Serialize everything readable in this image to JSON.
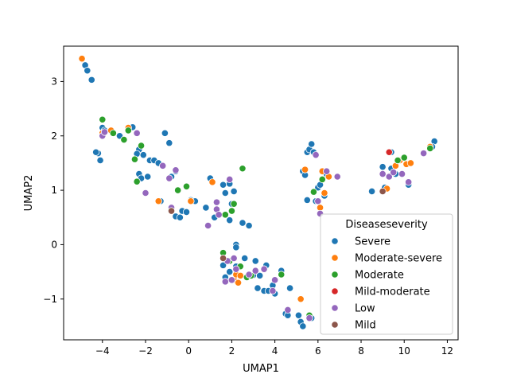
{
  "chart_data": {
    "type": "scatter",
    "xlabel": "UMAP1",
    "ylabel": "UMAP2",
    "xlim": [
      -5.8,
      12.5
    ],
    "ylim": [
      -1.75,
      3.65
    ],
    "xticks": [
      -4,
      -2,
      0,
      2,
      4,
      6,
      8,
      10,
      12
    ],
    "yticks": [
      -1,
      0,
      1,
      2,
      3
    ],
    "grid": false,
    "legend": {
      "title": "Diseaseseverity",
      "placement": "lower-right"
    },
    "series": [
      {
        "name": "Severe",
        "color": "#1f77b4",
        "points": [
          [
            -4.8,
            3.3
          ],
          [
            -4.7,
            3.2
          ],
          [
            -4.5,
            3.03
          ],
          [
            -4.95,
            3.41
          ],
          [
            -4.2,
            1.68
          ],
          [
            -4.1,
            1.55
          ],
          [
            -4.3,
            1.7
          ],
          [
            -4.0,
            2.15
          ],
          [
            -3.9,
            2.1
          ],
          [
            -3.5,
            2.05
          ],
          [
            -3.0,
            1.93
          ],
          [
            -3.2,
            2.0
          ],
          [
            -2.6,
            2.16
          ],
          [
            -2.3,
            1.75
          ],
          [
            -2.4,
            1.67
          ],
          [
            -2.1,
            1.65
          ],
          [
            -1.8,
            1.55
          ],
          [
            -1.6,
            1.55
          ],
          [
            -1.4,
            1.5
          ],
          [
            -1.1,
            2.05
          ],
          [
            -0.9,
            1.87
          ],
          [
            -0.6,
            1.35
          ],
          [
            -2.3,
            1.3
          ],
          [
            -2.2,
            1.22
          ],
          [
            -1.9,
            1.25
          ],
          [
            -1.3,
            0.8
          ],
          [
            -0.8,
            1.25
          ],
          [
            -0.8,
            0.65
          ],
          [
            -0.6,
            0.52
          ],
          [
            -0.4,
            0.5
          ],
          [
            -0.3,
            0.62
          ],
          [
            -0.1,
            0.6
          ],
          [
            0.1,
            0.82
          ],
          [
            0.3,
            0.8
          ],
          [
            0.8,
            0.68
          ],
          [
            1.0,
            1.22
          ],
          [
            1.2,
            0.5
          ],
          [
            0.9,
            0.35
          ],
          [
            1.6,
            1.1
          ],
          [
            1.7,
            0.95
          ],
          [
            1.9,
            1.12
          ],
          [
            2.1,
            0.98
          ],
          [
            1.9,
            0.45
          ],
          [
            2.0,
            0.75
          ],
          [
            2.5,
            0.4
          ],
          [
            2.8,
            0.35
          ],
          [
            2.2,
            0.0
          ],
          [
            2.2,
            -0.05
          ],
          [
            1.6,
            -0.38
          ],
          [
            1.9,
            -0.5
          ],
          [
            1.7,
            -0.6
          ],
          [
            2.2,
            -0.4
          ],
          [
            2.6,
            -0.25
          ],
          [
            3.1,
            -0.3
          ],
          [
            3.0,
            -0.56
          ],
          [
            3.3,
            -0.57
          ],
          [
            3.2,
            -0.8
          ],
          [
            3.5,
            -0.85
          ],
          [
            3.7,
            -0.85
          ],
          [
            3.9,
            -0.75
          ],
          [
            4.0,
            -0.9
          ],
          [
            3.6,
            -0.38
          ],
          [
            3.5,
            -0.45
          ],
          [
            4.3,
            -0.48
          ],
          [
            4.5,
            -1.27
          ],
          [
            4.6,
            -1.3
          ],
          [
            4.7,
            -0.8
          ],
          [
            5.1,
            -1.3
          ],
          [
            5.2,
            -1.42
          ],
          [
            5.3,
            -1.5
          ],
          [
            5.7,
            -1.35
          ],
          [
            5.3,
            1.35
          ],
          [
            5.4,
            1.28
          ],
          [
            5.5,
            1.7
          ],
          [
            5.6,
            1.75
          ],
          [
            5.7,
            1.85
          ],
          [
            5.8,
            1.7
          ],
          [
            5.5,
            0.82
          ],
          [
            5.9,
            0.8
          ],
          [
            6.0,
            1.05
          ],
          [
            6.1,
            1.1
          ],
          [
            6.2,
            1.34
          ],
          [
            6.3,
            0.9
          ],
          [
            6.4,
            1.3
          ],
          [
            8.5,
            0.98
          ],
          [
            9.0,
            1.43
          ],
          [
            9.1,
            1.05
          ],
          [
            9.4,
            1.4
          ],
          [
            9.6,
            1.3
          ],
          [
            9.4,
            1.7
          ],
          [
            10.2,
            1.1
          ],
          [
            11.4,
            1.9
          ],
          [
            11.3,
            1.8
          ]
        ]
      },
      {
        "name": "Moderate-severe",
        "color": "#ff7f0e",
        "points": [
          [
            -4.95,
            3.42
          ],
          [
            -4.0,
            2.05
          ],
          [
            -3.6,
            2.1
          ],
          [
            -2.8,
            2.15
          ],
          [
            -1.4,
            0.8
          ],
          [
            0.1,
            0.8
          ],
          [
            1.1,
            1.15
          ],
          [
            2.1,
            -0.65
          ],
          [
            2.3,
            -0.7
          ],
          [
            2.2,
            -0.55
          ],
          [
            2.4,
            -0.57
          ],
          [
            5.2,
            -1.0
          ],
          [
            5.4,
            1.38
          ],
          [
            6.1,
            0.68
          ],
          [
            6.3,
            0.95
          ],
          [
            6.5,
            1.25
          ],
          [
            6.2,
            1.35
          ],
          [
            9.2,
            1.03
          ],
          [
            9.6,
            1.45
          ],
          [
            9.8,
            1.55
          ],
          [
            10.1,
            1.48
          ],
          [
            10.3,
            1.5
          ],
          [
            11.2,
            1.8
          ]
        ]
      },
      {
        "name": "Moderate",
        "color": "#2ca02c",
        "points": [
          [
            -4.0,
            2.3
          ],
          [
            -3.5,
            2.05
          ],
          [
            -3.0,
            1.93
          ],
          [
            -2.8,
            2.1
          ],
          [
            -2.5,
            1.57
          ],
          [
            -2.4,
            1.16
          ],
          [
            -2.2,
            1.82
          ],
          [
            -0.5,
            1.0
          ],
          [
            -0.1,
            1.07
          ],
          [
            1.6,
            -0.15
          ],
          [
            1.7,
            0.55
          ],
          [
            1.9,
            -0.3
          ],
          [
            2.0,
            0.62
          ],
          [
            2.1,
            0.75
          ],
          [
            2.4,
            -0.4
          ],
          [
            2.5,
            1.4
          ],
          [
            2.7,
            -0.6
          ],
          [
            2.9,
            -0.57
          ],
          [
            4.3,
            -0.55
          ],
          [
            5.6,
            -1.3
          ],
          [
            5.8,
            0.97
          ],
          [
            6.2,
            1.2
          ],
          [
            9.7,
            1.55
          ],
          [
            10.0,
            1.6
          ],
          [
            11.2,
            1.77
          ]
        ]
      },
      {
        "name": "Mild-moderate",
        "color": "#d62728",
        "points": [
          [
            9.3,
            1.7
          ]
        ]
      },
      {
        "name": "Low",
        "color": "#9467bd",
        "points": [
          [
            -4.0,
            2.0
          ],
          [
            -3.9,
            2.07
          ],
          [
            -2.4,
            2.05
          ],
          [
            -2.0,
            0.95
          ],
          [
            -1.2,
            1.45
          ],
          [
            -0.9,
            1.22
          ],
          [
            -0.6,
            1.37
          ],
          [
            -0.8,
            0.68
          ],
          [
            0.9,
            0.35
          ],
          [
            1.3,
            0.78
          ],
          [
            1.3,
            0.65
          ],
          [
            1.4,
            0.55
          ],
          [
            1.9,
            1.2
          ],
          [
            1.8,
            -0.3
          ],
          [
            1.7,
            -0.68
          ],
          [
            2.0,
            -0.65
          ],
          [
            2.1,
            -0.25
          ],
          [
            2.2,
            -0.45
          ],
          [
            2.8,
            -0.55
          ],
          [
            3.1,
            -0.48
          ],
          [
            3.5,
            -0.45
          ],
          [
            3.9,
            -0.85
          ],
          [
            4.0,
            -0.65
          ],
          [
            4.6,
            -1.2
          ],
          [
            5.6,
            -1.35
          ],
          [
            5.9,
            1.65
          ],
          [
            6.0,
            0.8
          ],
          [
            6.1,
            0.57
          ],
          [
            6.4,
            1.35
          ],
          [
            6.9,
            1.25
          ],
          [
            9.3,
            1.25
          ],
          [
            9.0,
            1.3
          ],
          [
            9.5,
            1.33
          ],
          [
            9.9,
            1.3
          ],
          [
            10.2,
            1.15
          ],
          [
            10.9,
            1.68
          ]
        ]
      },
      {
        "name": "Mild",
        "color": "#8c564b",
        "points": [
          [
            -0.8,
            0.62
          ],
          [
            1.6,
            -0.25
          ],
          [
            9.0,
            0.98
          ]
        ]
      }
    ]
  }
}
